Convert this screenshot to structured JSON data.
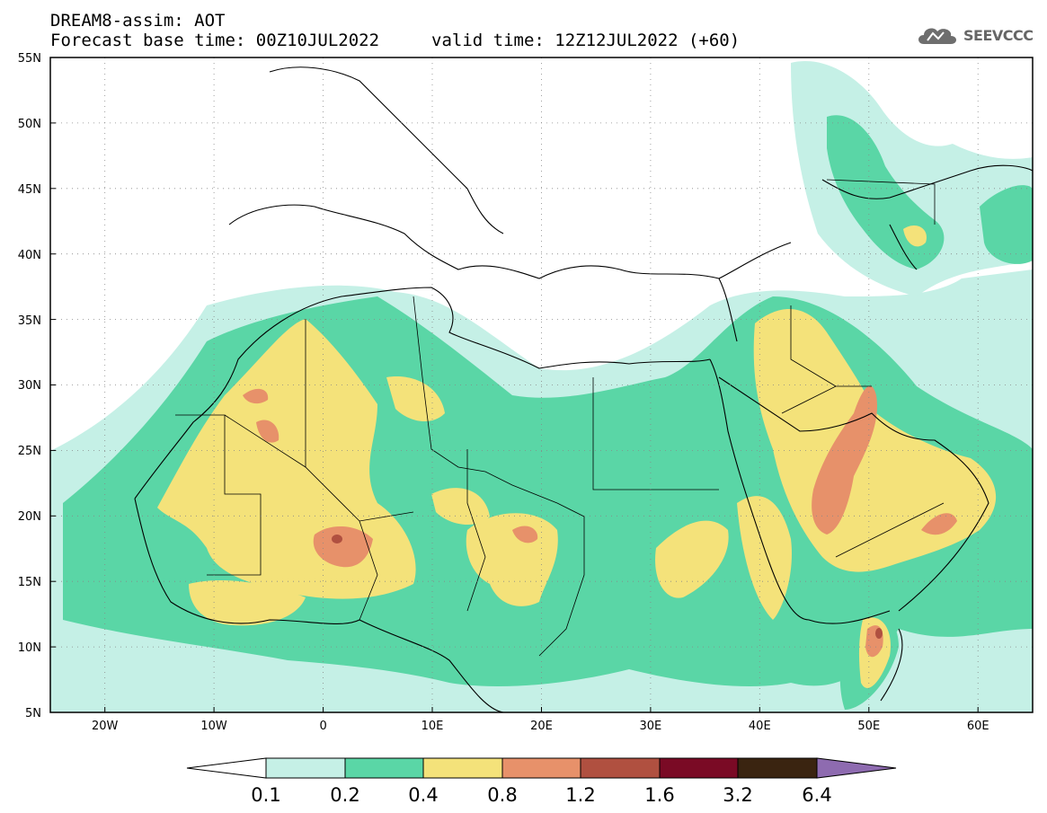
{
  "header": {
    "line1": "DREAM8-assim: AOT",
    "line2": "Forecast base time: 00Z10JUL2022",
    "valid": "valid time: 12Z12JUL2022 (+60)"
  },
  "logo": {
    "text": "SEEVCCC",
    "icon": "cloud-icon"
  },
  "map": {
    "lon_range": [
      -25,
      65
    ],
    "lat_range": [
      5,
      55
    ],
    "lon_labels": [
      "20W",
      "10W",
      "0",
      "10E",
      "20E",
      "30E",
      "40E",
      "50E",
      "60E"
    ],
    "lat_labels": [
      "55N",
      "50N",
      "45N",
      "40N",
      "35N",
      "30N",
      "25N",
      "20N",
      "15N",
      "10N",
      "5N"
    ],
    "field": "AOT"
  },
  "colorbar": {
    "levels": [
      "0.1",
      "0.2",
      "0.4",
      "0.8",
      "1.2",
      "1.6",
      "3.2",
      "6.4"
    ],
    "colors": [
      "#ffffff",
      "#c5f0e6",
      "#5ad6a6",
      "#f4e27a",
      "#e7916a",
      "#b05040",
      "#7a0a25",
      "#3a2410",
      "#8e6bb0"
    ]
  }
}
